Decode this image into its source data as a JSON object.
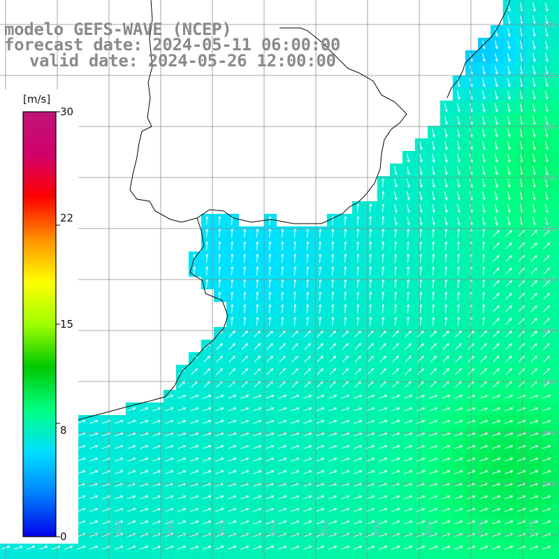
{
  "title": {
    "line1": "modelo GEFS-WAVE (NCEP)",
    "line2": "forecast date: 2024-05-11 06:00:00",
    "line3": "valid date: 2024-05-26 12:00:00"
  },
  "colorbar": {
    "units": "[m/s]",
    "ticks": [
      {
        "label": "30",
        "value": 30
      },
      {
        "label": "22",
        "value": 22
      },
      {
        "label": "15",
        "value": 15
      },
      {
        "label": "8",
        "value": 8
      },
      {
        "label": "0",
        "value": 0
      }
    ],
    "range": [
      0,
      30
    ],
    "gradient_stops": [
      "#0000e6",
      "#0080ff",
      "#00e0ff",
      "#00ff80",
      "#00c800",
      "#a0ff00",
      "#ffff00",
      "#ff9000",
      "#ff0000",
      "#d0006a",
      "#c0157a"
    ]
  },
  "map": {
    "lat_labels": [
      "32S",
      "33S",
      "34S",
      "35S",
      "36S",
      "37S",
      "38S",
      "39S",
      "40S",
      "41S"
    ],
    "lon_labels": [
      "61W",
      "60W",
      "59W",
      "58W",
      "57W",
      "56W",
      "55W",
      "54W",
      "53W",
      "52W",
      "51W"
    ],
    "land_color": "#ffffff",
    "grid_color": "#8c8c8c",
    "coast_color": "#000000",
    "arrow_color": "#ffffff"
  }
}
